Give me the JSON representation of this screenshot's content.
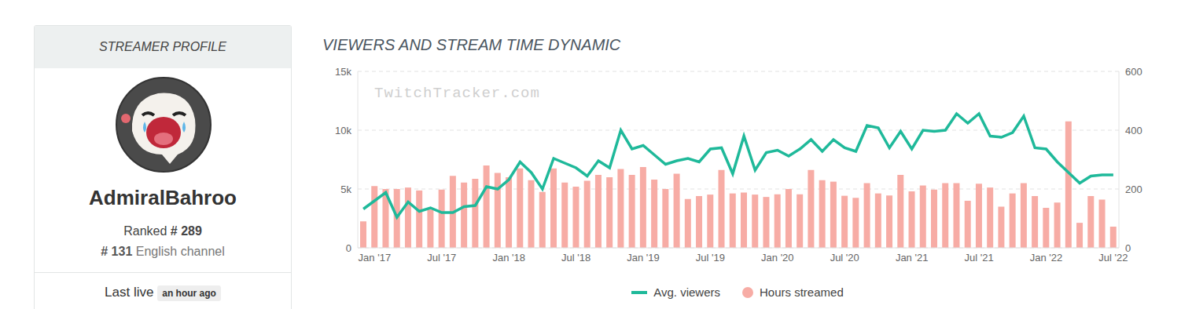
{
  "profile": {
    "header": "STREAMER PROFILE",
    "name": "AdmiralBahroo",
    "rank_label": "Ranked",
    "rank": "# 289",
    "channel_rank": "# 131",
    "channel_rank_label": "English channel",
    "last_live_label": "Last live",
    "last_live": "an hour ago"
  },
  "chart_data": {
    "type": "combo",
    "title": "VIEWERS AND STREAM TIME DYNAMIC",
    "annotations": [
      {
        "text": "TwitchTracker.com"
      }
    ],
    "categories": [
      null,
      "Jan '17",
      null,
      null,
      null,
      null,
      null,
      "Jul '17",
      null,
      null,
      null,
      null,
      null,
      "Jan '18",
      null,
      null,
      null,
      null,
      null,
      "Jul '18",
      null,
      null,
      null,
      null,
      null,
      "Jan '19",
      null,
      null,
      null,
      null,
      null,
      "Jul '19",
      null,
      null,
      null,
      null,
      null,
      "Jan '20",
      null,
      null,
      null,
      null,
      null,
      "Jul '20",
      null,
      null,
      null,
      null,
      null,
      "Jan '21",
      null,
      null,
      null,
      null,
      null,
      "Jul '21",
      null,
      null,
      null,
      null,
      null,
      "Jan '22",
      null,
      null,
      null,
      null,
      null,
      "Jul '22"
    ],
    "series": [
      {
        "name": "Avg. viewers",
        "type": "line",
        "color": "#1fb99a",
        "values": [
          3300,
          4000,
          4700,
          2600,
          3900,
          3100,
          3400,
          3000,
          3000,
          3500,
          3600,
          5200,
          5000,
          5800,
          7300,
          6400,
          5000,
          7600,
          7200,
          6800,
          6100,
          7400,
          6800,
          10000,
          8400,
          8700,
          7900,
          7100,
          7400,
          7600,
          7300,
          8400,
          8500,
          6300,
          9500,
          6600,
          8100,
          8300,
          7800,
          8400,
          9200,
          8200,
          9200,
          8500,
          8200,
          10400,
          10200,
          8500,
          9900,
          8400,
          10000,
          9900,
          10000,
          11400,
          10600,
          11400,
          9500,
          9400,
          9800,
          11200,
          8500,
          8400,
          7300,
          6400,
          5500,
          6100,
          6200,
          6200
        ]
      },
      {
        "name": "Hours streamed",
        "type": "bar",
        "axis": "y2",
        "color": "#f7aca5",
        "values": [
          90,
          210,
          200,
          200,
          205,
          195,
          130,
          198,
          245,
          222,
          235,
          280,
          255,
          240,
          270,
          230,
          190,
          270,
          222,
          208,
          228,
          248,
          240,
          268,
          248,
          275,
          232,
          200,
          252,
          166,
          176,
          181,
          265,
          185,
          188,
          181,
          173,
          182,
          200,
          182,
          265,
          230,
          225,
          177,
          170,
          220,
          185,
          178,
          248,
          192,
          212,
          198,
          220,
          220,
          160,
          218,
          205,
          140,
          185,
          220,
          176,
          136,
          154,
          430,
          85,
          176,
          164,
          72
        ]
      }
    ],
    "ylim": [
      0,
      15000
    ],
    "yticks": [
      0,
      {
        "value": 5000,
        "label": "5k"
      },
      {
        "value": 10000,
        "label": "10k"
      },
      {
        "value": 15000,
        "label": "15k"
      }
    ],
    "y2lim": [
      0,
      600
    ],
    "y2ticks": [
      0,
      200,
      400,
      600
    ],
    "grid": true,
    "legend": "bottom"
  }
}
